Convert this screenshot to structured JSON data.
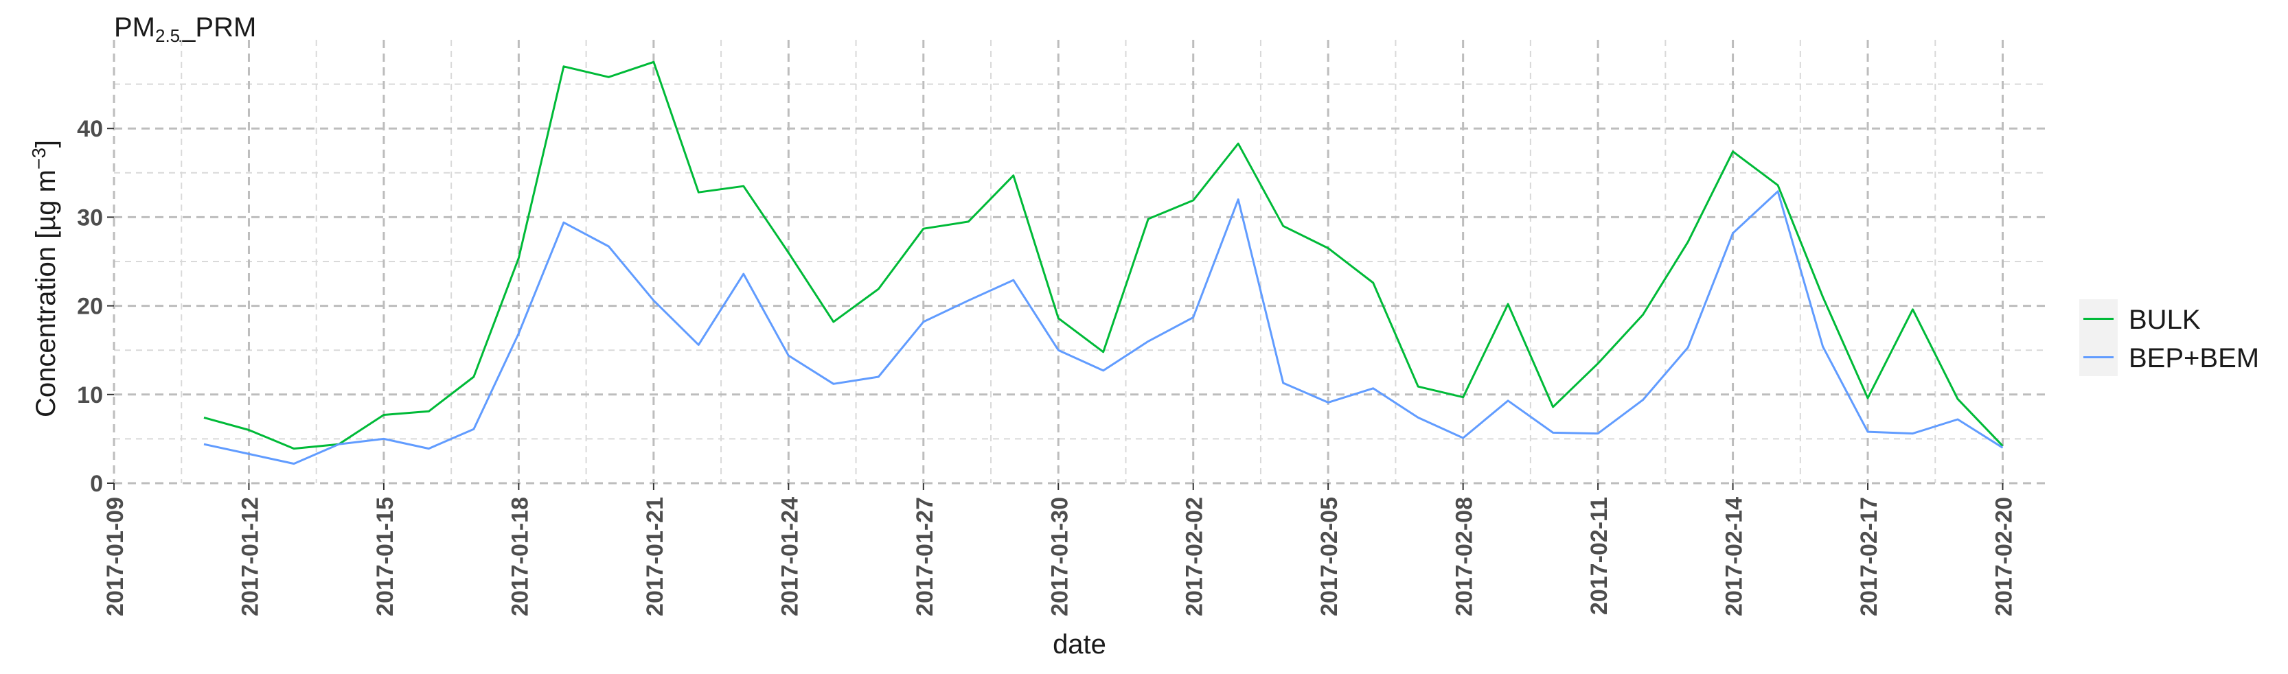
{
  "chart_data": {
    "type": "line",
    "title_main": "PM",
    "title_sub": "2.5",
    "title_suffix": "_PRM",
    "xlabel": "date",
    "ylabel": "Concentration [µg m",
    "ylabel_sup": "−3",
    "ylabel_close": "]",
    "xlim": [
      "2017-01-09",
      "2017-02-21"
    ],
    "ylim": [
      0,
      50
    ],
    "yticks": [
      0,
      10,
      20,
      30,
      40
    ],
    "yticks_minor": [
      5,
      15,
      25,
      35,
      45
    ],
    "xticks": [
      "2017-01-09",
      "2017-01-12",
      "2017-01-15",
      "2017-01-18",
      "2017-01-21",
      "2017-01-24",
      "2017-01-27",
      "2017-01-30",
      "2017-02-02",
      "2017-02-05",
      "2017-02-08",
      "2017-02-11",
      "2017-02-14",
      "2017-02-17",
      "2017-02-20"
    ],
    "grid": true,
    "legend_position": "right",
    "x": [
      "2017-01-11",
      "2017-01-12",
      "2017-01-13",
      "2017-01-14",
      "2017-01-15",
      "2017-01-16",
      "2017-01-17",
      "2017-01-18",
      "2017-01-19",
      "2017-01-20",
      "2017-01-21",
      "2017-01-22",
      "2017-01-23",
      "2017-01-24",
      "2017-01-25",
      "2017-01-26",
      "2017-01-27",
      "2017-01-28",
      "2017-01-29",
      "2017-01-30",
      "2017-01-31",
      "2017-02-01",
      "2017-02-02",
      "2017-02-03",
      "2017-02-04",
      "2017-02-05",
      "2017-02-06",
      "2017-02-07",
      "2017-02-08",
      "2017-02-09",
      "2017-02-10",
      "2017-02-11",
      "2017-02-12",
      "2017-02-13",
      "2017-02-14",
      "2017-02-15",
      "2017-02-16",
      "2017-02-17",
      "2017-02-18",
      "2017-02-19",
      "2017-02-20"
    ],
    "series": [
      {
        "name": "BULK",
        "color": "#00ba38",
        "values": [
          7.4,
          6.0,
          3.9,
          4.4,
          7.7,
          8.1,
          12.0,
          25.4,
          47.0,
          45.8,
          47.5,
          32.8,
          33.5,
          26.0,
          18.2,
          21.9,
          28.7,
          29.5,
          34.7,
          18.6,
          14.8,
          29.8,
          31.9,
          38.3,
          29.0,
          26.5,
          22.6,
          10.9,
          9.7,
          20.2,
          8.6,
          13.5,
          19.0,
          27.2,
          37.4,
          33.6,
          21.0,
          9.6,
          19.6,
          9.5,
          4.2
        ]
      },
      {
        "name": "BEP+BEM",
        "color": "#619cff",
        "values": [
          4.4,
          3.3,
          2.2,
          4.4,
          5.0,
          3.9,
          6.1,
          16.9,
          29.4,
          26.7,
          20.6,
          15.6,
          23.6,
          14.4,
          11.2,
          12.0,
          18.2,
          20.6,
          22.9,
          15.0,
          12.7,
          16.0,
          18.7,
          32.0,
          11.3,
          9.1,
          10.7,
          7.4,
          5.1,
          9.3,
          5.7,
          5.6,
          9.4,
          15.3,
          28.2,
          32.9,
          15.4,
          5.8,
          5.6,
          7.2,
          4.0
        ]
      }
    ]
  }
}
